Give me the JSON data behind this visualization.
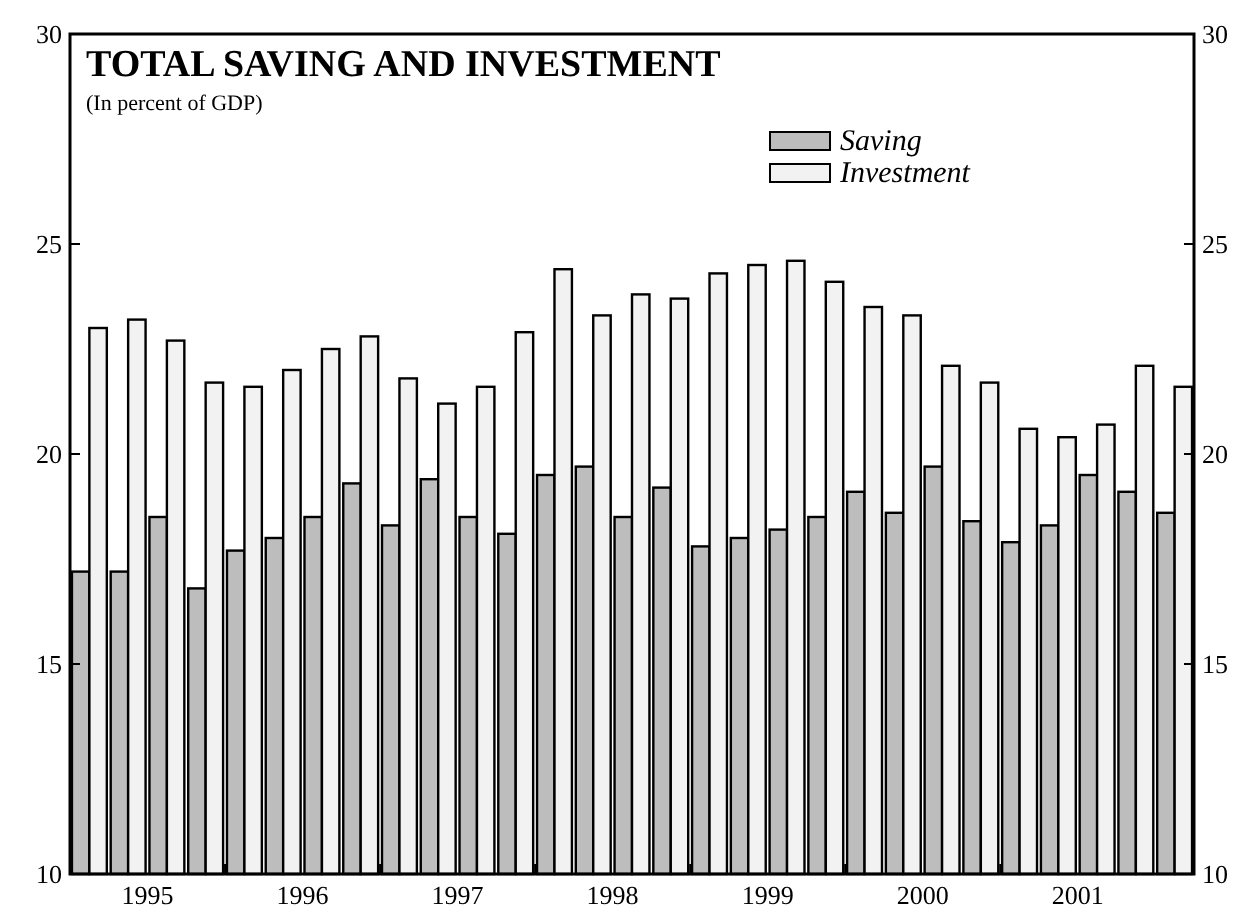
{
  "chart_data": {
    "type": "bar",
    "title": "TOTAL SAVING AND INVESTMENT",
    "subtitle": "(In percent of GDP)",
    "x": [
      1995.125,
      1995.375,
      1995.625,
      1995.875,
      1996.125,
      1996.375,
      1996.625,
      1996.875,
      1997.125,
      1997.375,
      1997.625,
      1997.875,
      1998.125,
      1998.375,
      1998.625,
      1998.875,
      1999.125,
      1999.375,
      1999.625,
      1999.875,
      2000.125,
      2000.375,
      2000.625,
      2000.875,
      2001.125,
      2001.375,
      2001.625,
      2001.875,
      2002.125
    ],
    "series": [
      {
        "name": "Saving",
        "color": "#bdbdbd",
        "values": [
          17.2,
          17.2,
          18.5,
          16.8,
          17.7,
          18.0,
          18.5,
          19.3,
          18.3,
          19.4,
          18.5,
          18.1,
          19.5,
          19.7,
          18.5,
          19.2,
          17.8,
          18.0,
          18.2,
          18.5,
          19.1,
          18.6,
          19.7,
          18.4,
          17.9,
          18.3,
          19.5,
          19.1,
          18.6
        ]
      },
      {
        "name": "Investment",
        "color": "#f2f2f2",
        "values": [
          23.0,
          23.2,
          22.7,
          21.7,
          21.6,
          22.0,
          22.5,
          22.8,
          21.8,
          21.2,
          21.6,
          22.9,
          24.4,
          23.3,
          23.8,
          23.7,
          24.3,
          24.5,
          24.6,
          24.1,
          23.5,
          23.3,
          22.1,
          21.7,
          20.6,
          20.4,
          20.7,
          22.1,
          21.6
        ]
      }
    ],
    "xlim": [
      1995,
      2002.25
    ],
    "xticks": [
      {
        "value": 1995.5,
        "label": "1995"
      },
      {
        "value": 1996.5,
        "label": "1996"
      },
      {
        "value": 1997.5,
        "label": "1997"
      },
      {
        "value": 1998.5,
        "label": "1998"
      },
      {
        "value": 1999.5,
        "label": "1999"
      },
      {
        "value": 2000.5,
        "label": "2000"
      },
      {
        "value": 2001.5,
        "label": "2001"
      }
    ],
    "ylim": [
      10,
      30
    ],
    "yticks": [
      10,
      15,
      20,
      25,
      30
    ],
    "y2lim": [
      10,
      30
    ],
    "y2ticks": [
      10,
      15,
      20,
      25,
      30
    ],
    "grid": false,
    "legend": "top right"
  }
}
